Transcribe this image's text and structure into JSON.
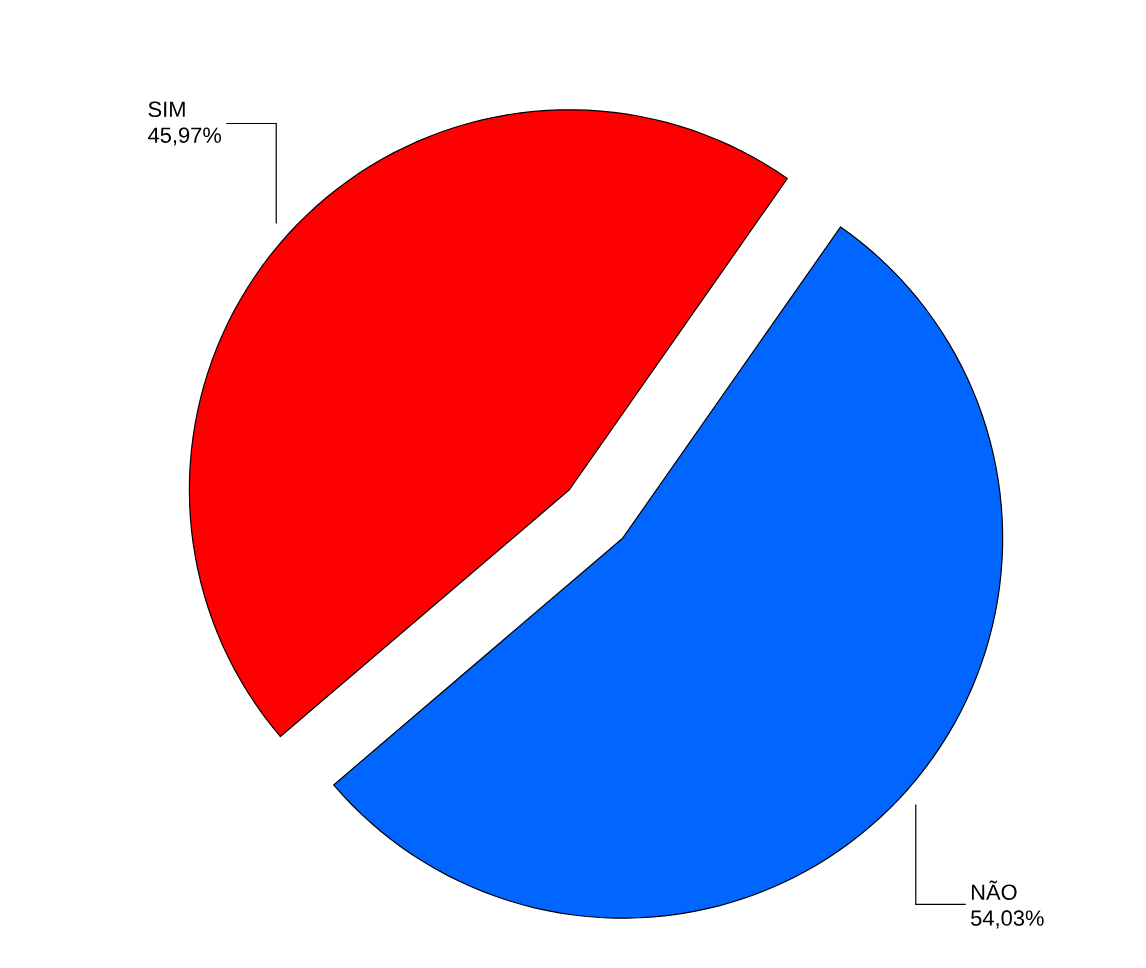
{
  "chart_data": {
    "type": "pie",
    "categories": [
      "SIM",
      "NÃO"
    ],
    "values": [
      45.97,
      54.03
    ],
    "colors": [
      "#ff0000",
      "#0066ff"
    ],
    "value_labels": [
      "45,97%",
      "54,03%"
    ]
  }
}
